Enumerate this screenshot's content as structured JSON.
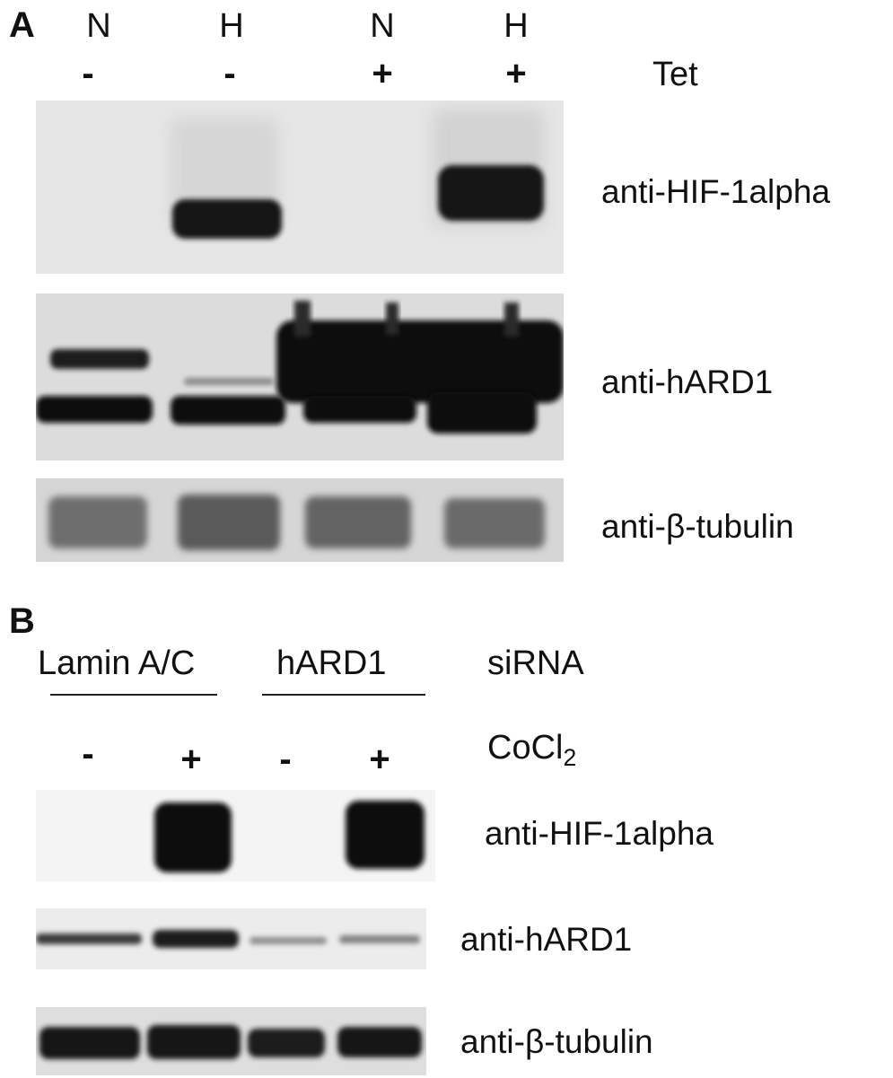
{
  "panel_a": {
    "letter": "A",
    "lane_conditions": [
      "N",
      "H",
      "N",
      "H"
    ],
    "tet_signs": [
      "-",
      "-",
      "+",
      "+"
    ],
    "tet_label": "Tet",
    "blots": [
      {
        "antibody": "anti-HIF-1alpha"
      },
      {
        "antibody": "anti-hARD1"
      },
      {
        "antibody": "anti-β-tubulin"
      }
    ]
  },
  "panel_b": {
    "letter": "B",
    "groups": [
      "Lamin A/C",
      "hARD1"
    ],
    "sirna_label": "siRNA",
    "cocl2_signs": [
      "-",
      "+",
      "-",
      "+"
    ],
    "cocl2_label": "CoCl",
    "cocl2_subscript": "2",
    "blots": [
      {
        "antibody": "anti-HIF-1alpha"
      },
      {
        "antibody": "anti-hARD1"
      },
      {
        "antibody": "anti-β-tubulin"
      }
    ]
  }
}
